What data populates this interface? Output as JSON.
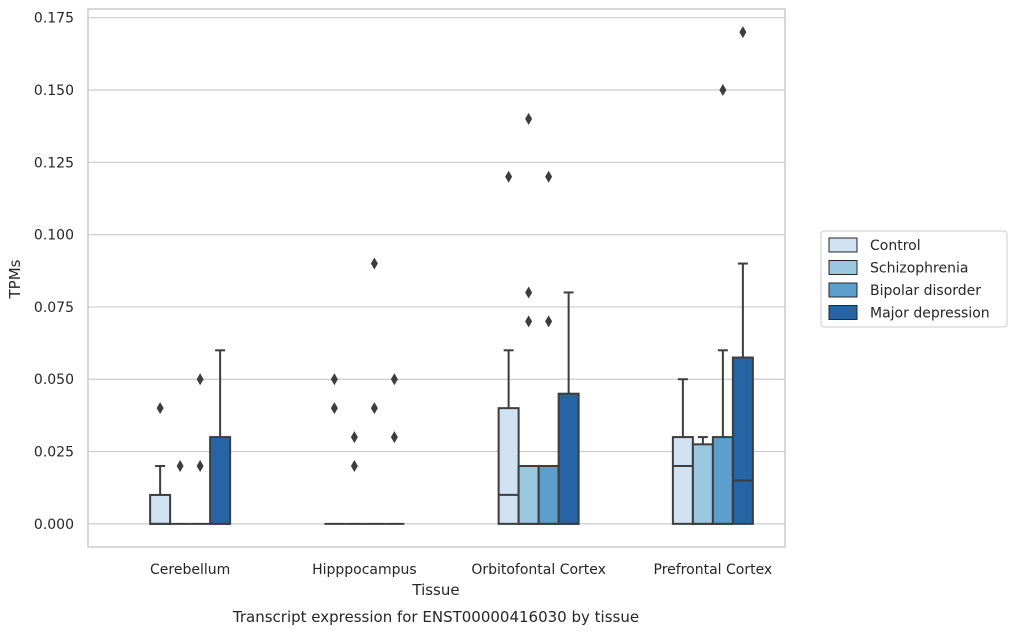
{
  "chart_data": {
    "type": "boxplot",
    "caption": "Transcript expression for ENST00000416030 by tissue",
    "xlabel": "Tissue",
    "ylabel": "TPMs",
    "ylim": [
      -0.008,
      0.178
    ],
    "yticks": [
      0.0,
      0.025,
      0.05,
      0.075,
      0.1,
      0.125,
      0.15,
      0.175
    ],
    "ytick_labels": [
      "0.000",
      "0.025",
      "0.050",
      "0.075",
      "0.100",
      "0.125",
      "0.150",
      "0.175"
    ],
    "grid": "horizontal",
    "legend_position": "right",
    "categories": [
      "Cerebellum",
      "Hipppocampus",
      "Orbitofontal Cortex",
      "Prefrontal Cortex"
    ],
    "series": [
      {
        "name": "Control",
        "color": "#d0e1f2",
        "boxes": [
          {
            "q1": 0.0,
            "median": 0.0,
            "q3": 0.01,
            "whisker_low": 0.0,
            "whisker_high": 0.02,
            "outliers": [
              0.04
            ]
          },
          {
            "q1": 0.0,
            "median": 0.0,
            "q3": 0.0,
            "whisker_low": 0.0,
            "whisker_high": 0.0,
            "outliers": [
              0.04,
              0.05
            ]
          },
          {
            "q1": 0.0,
            "median": 0.01,
            "q3": 0.04,
            "whisker_low": 0.0,
            "whisker_high": 0.06,
            "outliers": [
              0.12
            ]
          },
          {
            "q1": 0.0,
            "median": 0.02,
            "q3": 0.03,
            "whisker_low": 0.0,
            "whisker_high": 0.05,
            "outliers": []
          }
        ]
      },
      {
        "name": "Schizophrenia",
        "color": "#9ac8e0",
        "boxes": [
          {
            "q1": 0.0,
            "median": 0.0,
            "q3": 0.0,
            "whisker_low": 0.0,
            "whisker_high": 0.0,
            "outliers": [
              0.02
            ]
          },
          {
            "q1": 0.0,
            "median": 0.0,
            "q3": 0.0,
            "whisker_low": 0.0,
            "whisker_high": 0.0,
            "outliers": [
              0.02,
              0.03
            ]
          },
          {
            "q1": 0.0,
            "median": 0.0,
            "q3": 0.02,
            "whisker_low": 0.0,
            "whisker_high": 0.02,
            "outliers": [
              0.07,
              0.08,
              0.14
            ]
          },
          {
            "q1": 0.0,
            "median": 0.0,
            "q3": 0.0275,
            "whisker_low": 0.0,
            "whisker_high": 0.03,
            "outliers": []
          }
        ]
      },
      {
        "name": "Bipolar disorder",
        "color": "#5c9fcc",
        "boxes": [
          {
            "q1": 0.0,
            "median": 0.0,
            "q3": 0.0,
            "whisker_low": 0.0,
            "whisker_high": 0.0,
            "outliers": [
              0.02,
              0.05
            ]
          },
          {
            "q1": 0.0,
            "median": 0.0,
            "q3": 0.0,
            "whisker_low": 0.0,
            "whisker_high": 0.0,
            "outliers": [
              0.04,
              0.09
            ]
          },
          {
            "q1": 0.0,
            "median": 0.0,
            "q3": 0.02,
            "whisker_low": 0.0,
            "whisker_high": 0.02,
            "outliers": [
              0.07,
              0.12
            ]
          },
          {
            "q1": 0.0,
            "median": 0.0,
            "q3": 0.03,
            "whisker_low": 0.0,
            "whisker_high": 0.06,
            "outliers": [
              0.15
            ]
          }
        ]
      },
      {
        "name": "Major depression",
        "color": "#2565a6",
        "boxes": [
          {
            "q1": 0.0,
            "median": 0.0,
            "q3": 0.03,
            "whisker_low": 0.0,
            "whisker_high": 0.06,
            "outliers": []
          },
          {
            "q1": 0.0,
            "median": 0.0,
            "q3": 0.0,
            "whisker_low": 0.0,
            "whisker_high": 0.0,
            "outliers": [
              0.03,
              0.05
            ]
          },
          {
            "q1": 0.0,
            "median": 0.0,
            "q3": 0.045,
            "whisker_low": 0.0,
            "whisker_high": 0.08,
            "outliers": []
          },
          {
            "q1": 0.0,
            "median": 0.015,
            "q3": 0.0575,
            "whisker_low": 0.0,
            "whisker_high": 0.09,
            "outliers": [
              0.17
            ]
          }
        ]
      }
    ]
  }
}
